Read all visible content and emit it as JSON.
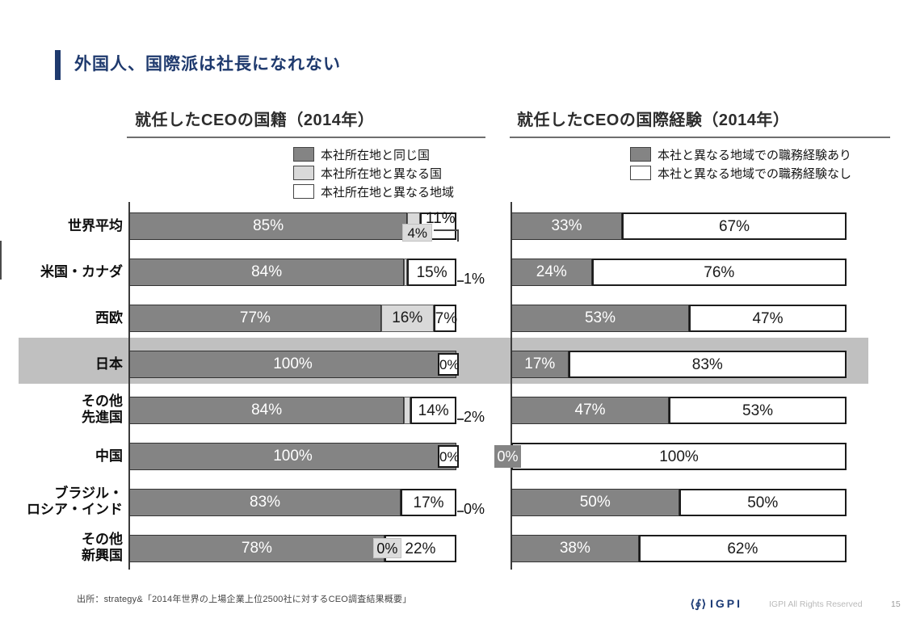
{
  "slide": {
    "title": "外国人、国際派は社長になれない",
    "source": "出所：strategy&「2014年世界の上場企業上位2500社に対するCEO調査結果概要」",
    "footer": {
      "logo_glyph": "⟨∮⟩",
      "logo_text": "IGPI",
      "rights": "IGPI All Rights Reserved",
      "page_number": "15"
    }
  },
  "colors": {
    "title_navy": "#1f3a6e",
    "bar_dark": "#848484",
    "bar_light": "#d9d9d9",
    "bar_white": "#ffffff",
    "highlight_band": "#c0c0c0",
    "axis": "#3c3c3c"
  },
  "highlight_category": "日本",
  "chart_data": [
    {
      "type": "bar",
      "variant": "horizontal-stacked",
      "title": "就任したCEOの国籍（2014年）",
      "xlim": [
        0,
        100
      ],
      "legend_position": "top-right",
      "series": [
        {
          "name": "本社所在地と同じ国",
          "color": "#848484",
          "text_color": "#ffffff"
        },
        {
          "name": "本社所在地と異なる国",
          "color": "#d9d9d9",
          "text_color": "#1a1a1a"
        },
        {
          "name": "本社所在地と異なる地域",
          "color": "#ffffff",
          "text_color": "#1a1a1a"
        }
      ],
      "rows": [
        {
          "category": [
            "世界平均"
          ],
          "values": [
            85,
            4,
            11
          ],
          "labels": [
            "85%",
            "4%",
            "11%"
          ],
          "modes": [
            "in",
            "tag",
            "bracket"
          ]
        },
        {
          "category": [
            "米国・カナダ"
          ],
          "values": [
            84,
            1,
            15
          ],
          "labels": [
            "84%",
            "1%",
            "15%"
          ],
          "modes": [
            "in",
            "out",
            "in"
          ]
        },
        {
          "category": [
            "西欧"
          ],
          "values": [
            77,
            16,
            7
          ],
          "labels": [
            "77%",
            "16%",
            "7%"
          ],
          "modes": [
            "in",
            "in",
            "in"
          ]
        },
        {
          "category": [
            "日本"
          ],
          "values": [
            100,
            0,
            0
          ],
          "labels": [
            "100%",
            "",
            "0%"
          ],
          "modes": [
            "in",
            "none",
            "endbox"
          ],
          "highlight": true
        },
        {
          "category": [
            "その他",
            "先進国"
          ],
          "values": [
            84,
            2,
            14
          ],
          "labels": [
            "84%",
            "2%",
            "14%"
          ],
          "modes": [
            "in",
            "out",
            "in"
          ]
        },
        {
          "category": [
            "中国"
          ],
          "values": [
            100,
            0,
            0
          ],
          "labels": [
            "100%",
            "",
            "0%"
          ],
          "modes": [
            "in",
            "none",
            "endbox"
          ]
        },
        {
          "category": [
            "ブラジル・",
            "ロシア・インド"
          ],
          "values": [
            83,
            0,
            17
          ],
          "labels": [
            "83%",
            "0%",
            "17%"
          ],
          "modes": [
            "in",
            "out",
            "in"
          ]
        },
        {
          "category": [
            "その他",
            "新興国"
          ],
          "values": [
            78,
            0,
            22
          ],
          "labels": [
            "78%",
            "0%",
            "22%"
          ],
          "modes": [
            "in",
            "tag-inline",
            "in"
          ]
        }
      ]
    },
    {
      "type": "bar",
      "variant": "horizontal-stacked",
      "title": "就任したCEOの国際経験（2014年）",
      "xlim": [
        0,
        100
      ],
      "legend_position": "top-right",
      "series": [
        {
          "name": "本社と異なる地域での職務経験あり",
          "color": "#848484",
          "text_color": "#ffffff"
        },
        {
          "name": "本社と異なる地域での職務経験なし",
          "color": "#ffffff",
          "text_color": "#1a1a1a"
        }
      ],
      "rows": [
        {
          "values": [
            33,
            67
          ],
          "labels": [
            "33%",
            "67%"
          ],
          "modes": [
            "in",
            "in"
          ]
        },
        {
          "values": [
            24,
            76
          ],
          "labels": [
            "24%",
            "76%"
          ],
          "modes": [
            "in",
            "in"
          ]
        },
        {
          "values": [
            53,
            47
          ],
          "labels": [
            "53%",
            "47%"
          ],
          "modes": [
            "in",
            "in"
          ]
        },
        {
          "values": [
            17,
            83
          ],
          "labels": [
            "17%",
            "83%"
          ],
          "modes": [
            "in",
            "in"
          ],
          "highlight": true
        },
        {
          "values": [
            47,
            53
          ],
          "labels": [
            "47%",
            "53%"
          ],
          "modes": [
            "in",
            "in"
          ]
        },
        {
          "values": [
            0,
            100
          ],
          "labels": [
            "0%",
            "100%"
          ],
          "modes": [
            "darkbox-left",
            "in"
          ]
        },
        {
          "values": [
            50,
            50
          ],
          "labels": [
            "50%",
            "50%"
          ],
          "modes": [
            "in",
            "in"
          ]
        },
        {
          "values": [
            38,
            62
          ],
          "labels": [
            "38%",
            "62%"
          ],
          "modes": [
            "in",
            "in"
          ]
        }
      ]
    }
  ]
}
